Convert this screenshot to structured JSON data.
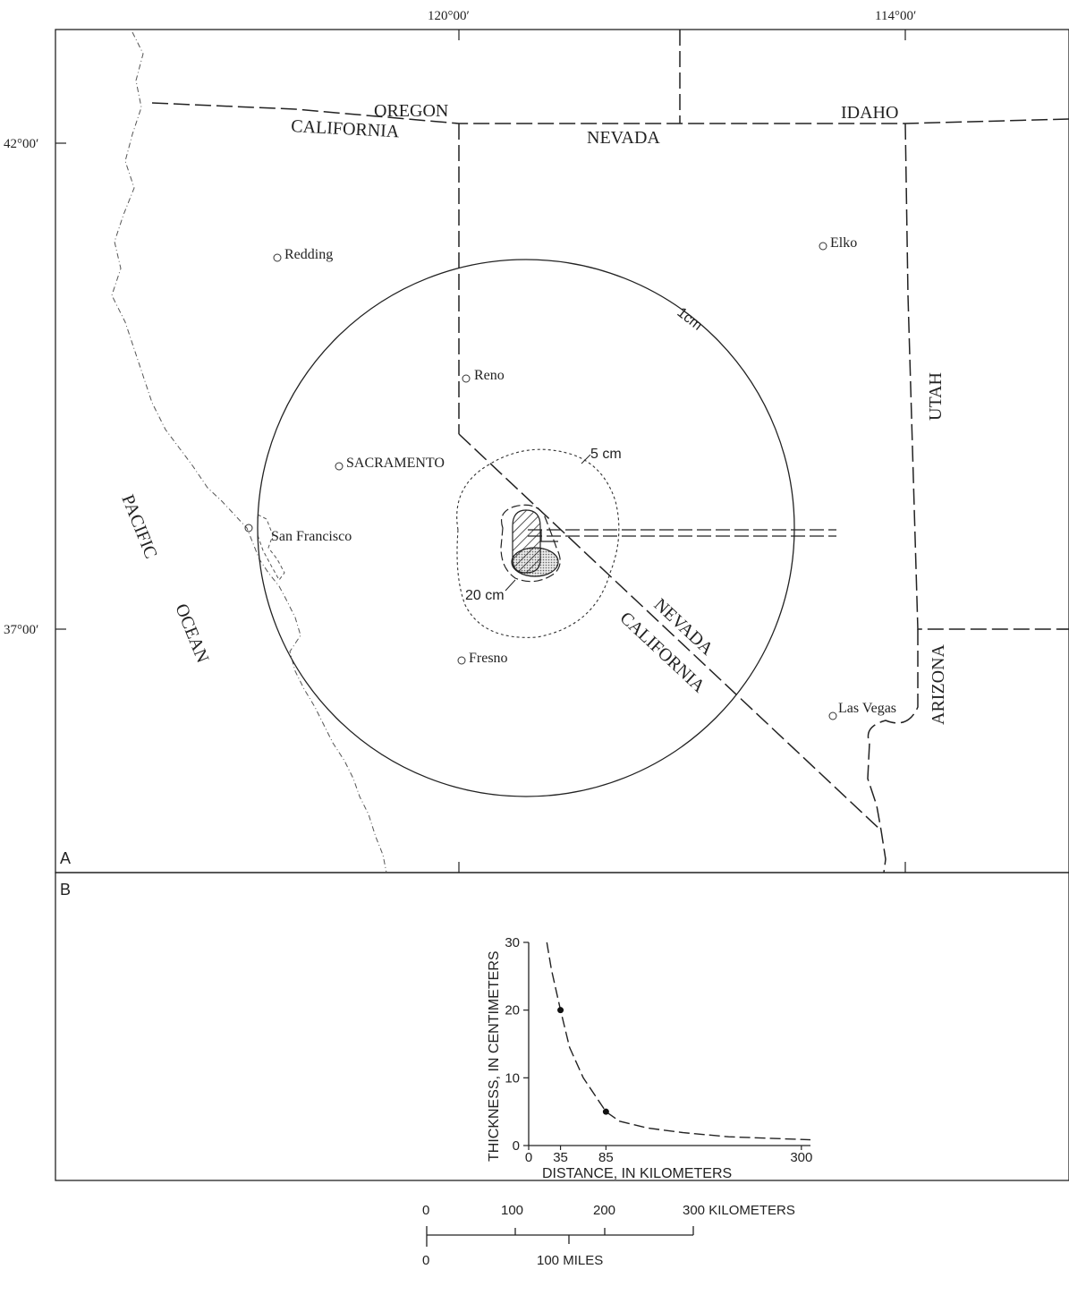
{
  "map": {
    "panel_label": "A",
    "longitude_labels": [
      "120°00′",
      "114°00′"
    ],
    "latitude_labels": [
      "42°00′",
      "37°00′"
    ],
    "states": {
      "oregon": "OREGON",
      "california_north": "CALIFORNIA",
      "nevada_north": "NEVADA",
      "idaho": "IDAHO",
      "utah": "UTAH",
      "arizona": "ARIZONA",
      "nevada_diag": "NEVADA",
      "california_diag": "CALIFORNIA"
    },
    "ocean": {
      "pacific": "PACIFIC",
      "ocean": "OCEAN"
    },
    "cities": {
      "redding": "Redding",
      "elko": "Elko",
      "reno": "Reno",
      "sacramento": "SACRAMENTO",
      "san_francisco": "San Francisco",
      "fresno": "Fresno",
      "las_vegas": "Las Vegas"
    },
    "isopachs": {
      "c1": "1cm",
      "c5": "5 cm",
      "c20": "20 cm"
    }
  },
  "chart_panel": {
    "panel_label": "B"
  },
  "chart_data": {
    "type": "line",
    "xlabel": "DISTANCE, IN KILOMETERS",
    "ylabel": "THICKNESS, IN CENTIMETERS",
    "xticks": [
      "0",
      "35",
      "85",
      "300"
    ],
    "yticks": [
      "0",
      "10",
      "20",
      "30"
    ],
    "xlim": [
      0,
      310
    ],
    "ylim": [
      0,
      30
    ],
    "series": [
      {
        "x": [
          20,
          25,
          35,
          45,
          60,
          75,
          85,
          100,
          130,
          170,
          220,
          260,
          300,
          310
        ],
        "y": [
          30,
          26,
          20,
          14.5,
          10,
          7,
          5,
          3.6,
          2.6,
          1.9,
          1.3,
          1.1,
          0.9,
          0.85
        ]
      }
    ],
    "points": [
      {
        "x": 35,
        "y": 20
      },
      {
        "x": 85,
        "y": 5
      }
    ]
  },
  "scale_bar": {
    "km_labels": [
      "0",
      "100",
      "200",
      "300 KILOMETERS"
    ],
    "mile_labels": [
      "0",
      "100 MILES"
    ]
  }
}
